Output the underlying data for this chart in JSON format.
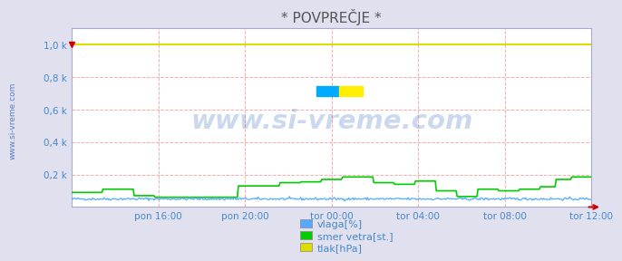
{
  "title": "* POVPREČJE *",
  "background_color": "#e0e0ee",
  "plot_background_color": "#ffffff",
  "grid_color": "#ffaaaa",
  "title_color": "#555555",
  "watermark_text": "www.si-vreme.com",
  "watermark_color": "#3366bb",
  "watermark_alpha": 0.25,
  "sidebar_text": "www.si-vreme.com",
  "sidebar_color": "#3366bb",
  "ylim": [
    0,
    1.1
  ],
  "yticks": [
    0.2,
    0.4,
    0.6,
    0.8,
    1.0
  ],
  "ytick_labels": [
    "0,2 k",
    "0,4 k",
    "0,6 k",
    "0,8 k",
    "1,0 k"
  ],
  "xtick_labels": [
    "pon 16:00",
    "pon 20:00",
    "tor 00:00",
    "tor 04:00",
    "tor 08:00",
    "tor 12:00"
  ],
  "n_points": 500,
  "vlaga_color": "#55aaff",
  "smer_color": "#00cc00",
  "tlak_color": "#dddd00",
  "legend_labels": [
    "vlaga[%]",
    "smer vetra[st.]",
    "tlak[hPa]"
  ],
  "legend_colors": [
    "#55aaff",
    "#00cc00",
    "#dddd00"
  ],
  "tick_color": "#4488cc",
  "arrow_color": "#cc0000",
  "marker_color": "#cc0000"
}
